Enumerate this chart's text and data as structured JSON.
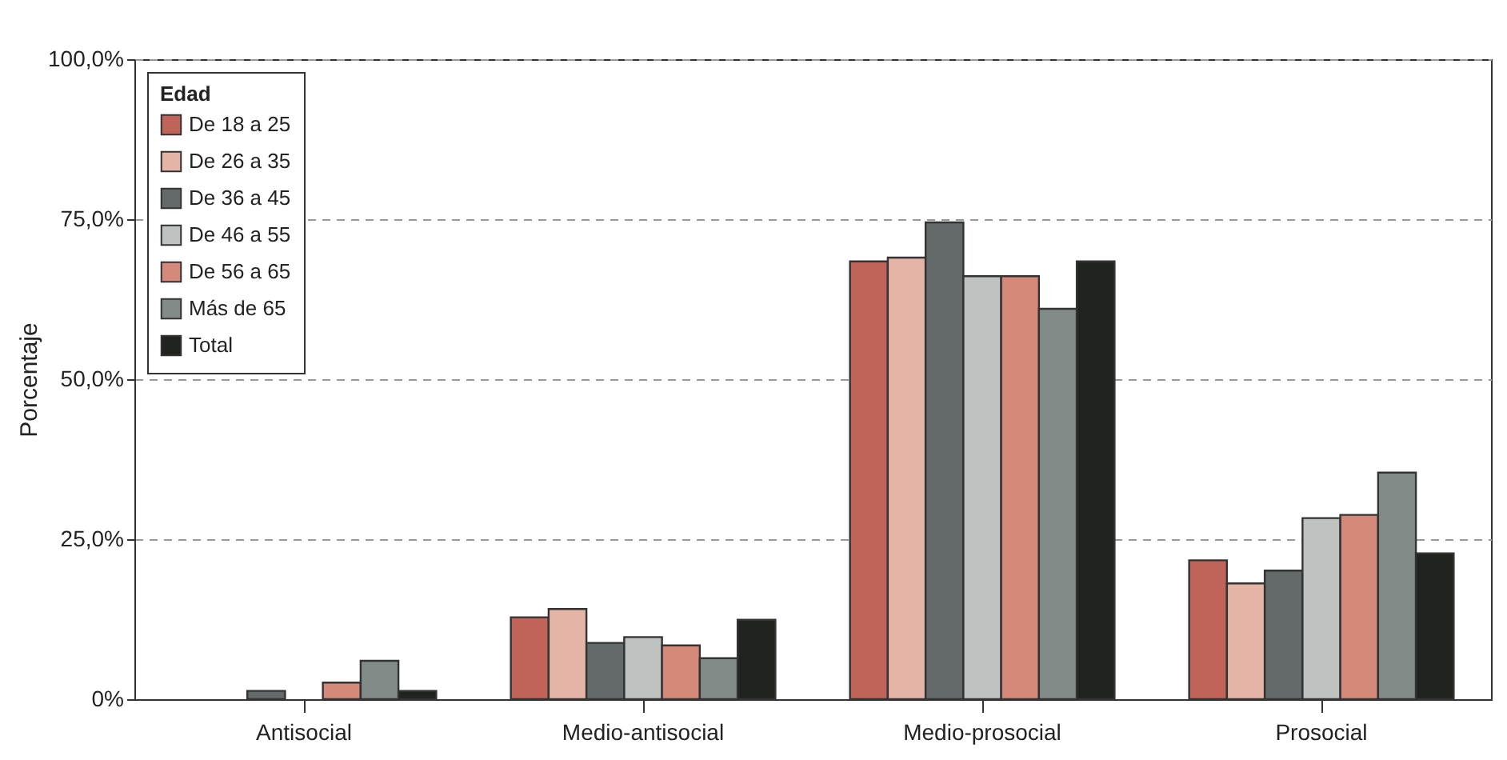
{
  "chart_data": {
    "type": "bar",
    "ylabel": "Porcentaje",
    "legend_title": "Edad",
    "legend": "top left",
    "grid": "y",
    "categories": [
      "Antisocial",
      "Medio-antisocial",
      "Medio-prosocial",
      "Prosocial"
    ],
    "ylim": [
      0,
      100
    ],
    "yticks": [
      {
        "value": 0,
        "label": "0%"
      },
      {
        "value": 25,
        "label": "25,0%"
      },
      {
        "value": 50,
        "label": "50,0%"
      },
      {
        "value": 75,
        "label": "75,0%"
      },
      {
        "value": 100,
        "label": "100,0%"
      }
    ],
    "series": [
      {
        "name": "De 18 a 25",
        "color": "#c06358",
        "values": [
          null,
          12.8,
          68.4,
          21.7
        ]
      },
      {
        "name": "De 26 a 35",
        "color": "#e4b5a7",
        "values": [
          null,
          14.1,
          69.0,
          18.1
        ]
      },
      {
        "name": "De 36 a 45",
        "color": "#636a69",
        "values": [
          1.3,
          8.8,
          74.5,
          20.1
        ]
      },
      {
        "name": "De 46 a 55",
        "color": "#bec3c2",
        "values": [
          null,
          9.7,
          66.1,
          28.3
        ]
      },
      {
        "name": "De 56 a 65",
        "color": "#d4897b",
        "values": [
          2.6,
          8.4,
          66.1,
          28.8
        ]
      },
      {
        "name": "Más de 65",
        "color": "#838b89",
        "values": [
          6.0,
          6.4,
          61.0,
          35.4
        ]
      },
      {
        "name": "Total",
        "color": "#21231f",
        "values": [
          1.3,
          12.4,
          68.4,
          22.8
        ]
      }
    ]
  }
}
